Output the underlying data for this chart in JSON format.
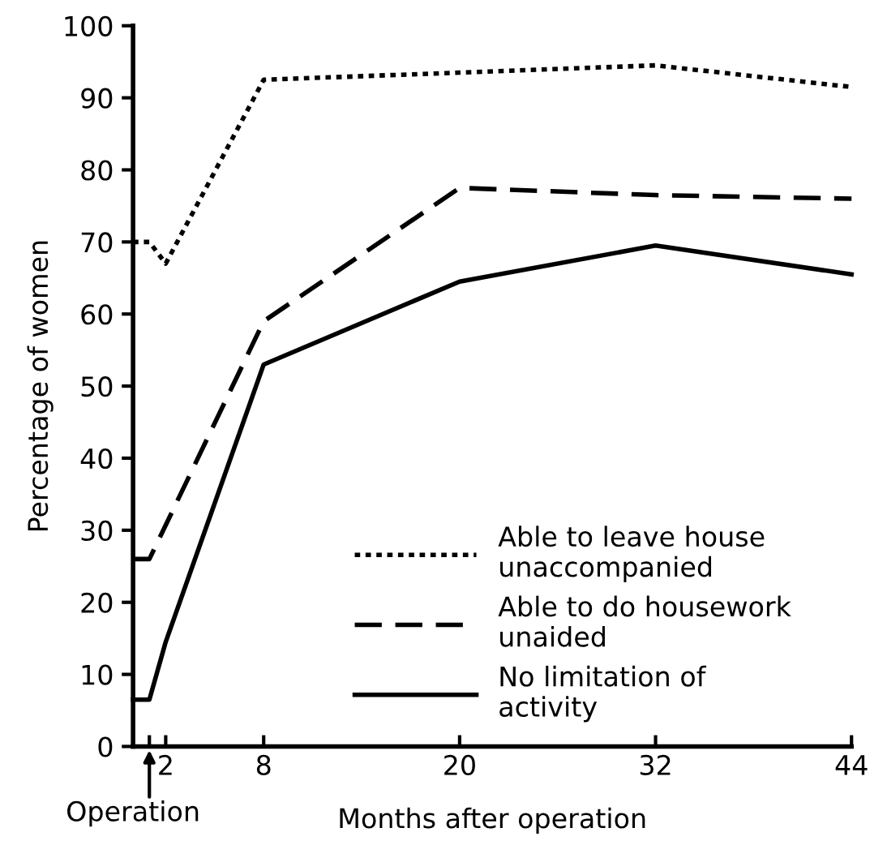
{
  "chart_data": {
    "type": "line",
    "xlabel": "Months after operation",
    "ylabel": "Percentage of women",
    "xlim": [
      0,
      44
    ],
    "xticks": [
      {
        "value": 1,
        "label": null
      },
      2,
      8,
      20,
      32,
      44
    ],
    "ylim": [
      0,
      100
    ],
    "yticks": [
      0,
      10,
      20,
      30,
      40,
      50,
      60,
      70,
      80,
      90,
      100
    ],
    "grid": false,
    "legend": "bottom right",
    "marker": "none",
    "annotations": [
      "Operation"
    ],
    "series": [
      {
        "name": "Able to leave house\nunaccompanied",
        "color": "#000000",
        "line_style": "dotted",
        "x": [
          0,
          1,
          2,
          8,
          20,
          32,
          44
        ],
        "values": [
          70,
          70,
          67,
          92.5,
          93.5,
          94.5,
          91.5
        ]
      },
      {
        "name": "Able to do housework\nunaided",
        "color": "#000000",
        "line_style": "dashed",
        "x": [
          0,
          1,
          8,
          20,
          32,
          44
        ],
        "values": [
          26,
          26,
          59,
          77.5,
          76.5,
          76
        ]
      },
      {
        "name": "No limitation of\nactivity",
        "color": "#000000",
        "line_style": "solid",
        "x": [
          0,
          1,
          2,
          8,
          20,
          32,
          44
        ],
        "values": [
          6.5,
          6.5,
          14.5,
          53,
          64.5,
          69.5,
          65.5
        ]
      }
    ]
  }
}
